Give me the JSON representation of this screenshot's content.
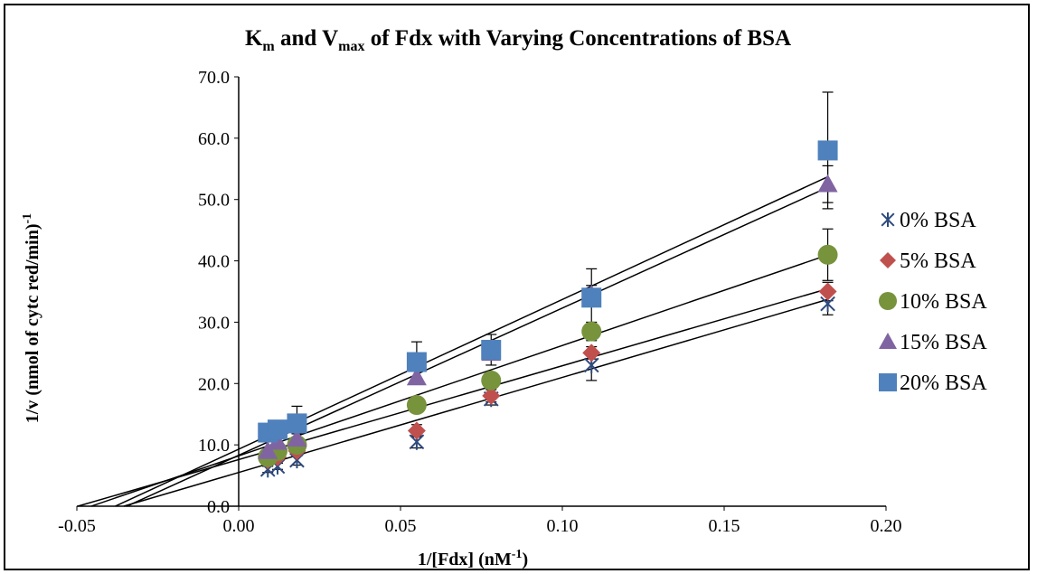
{
  "chart_data": {
    "type": "scatter",
    "title": {
      "main": "K",
      "m_sub": "m",
      "and": " and V",
      "max_sub": "max",
      "rest": " of Fdx with Varying Concentrations of BSA"
    },
    "xlabel": {
      "pre": "1/[Fdx] (nM",
      "sup": "-1",
      "post": ")"
    },
    "ylabel": {
      "main": "1/v (nmol of cytc red/min)",
      "sup": "-1"
    },
    "xlim": [
      -0.05,
      0.2
    ],
    "ylim": [
      0,
      70
    ],
    "x_ticks": [
      "-0.05",
      "0.00",
      "0.05",
      "0.10",
      "0.15",
      "0.20"
    ],
    "x_tick_values": [
      -0.05,
      0.0,
      0.05,
      0.1,
      0.15,
      0.2
    ],
    "y_ticks": [
      "0.0",
      "10.0",
      "20.0",
      "30.0",
      "40.0",
      "50.0",
      "60.0",
      "70.0"
    ],
    "y_tick_values": [
      0,
      10,
      20,
      30,
      40,
      50,
      60,
      70
    ],
    "grid": false,
    "legend_position": "right",
    "series": [
      {
        "name": "0% BSA",
        "marker": "asterisk",
        "color": "#2E4A7D",
        "x": [
          0.009,
          0.012,
          0.018,
          0.055,
          0.078,
          0.109,
          0.182
        ],
        "y": [
          6.0,
          6.5,
          7.5,
          10.5,
          17.5,
          23.0,
          33.0
        ],
        "err": [
          0.5,
          0.5,
          0.8,
          1.0,
          1.0,
          2.5,
          1.8
        ],
        "fit": {
          "slope": 155,
          "intercept": 5.5,
          "x0": -0.0355
        }
      },
      {
        "name": "5% BSA",
        "marker": "diamond",
        "color": "#C0504D",
        "x": [
          0.009,
          0.012,
          0.018,
          0.055,
          0.078,
          0.109,
          0.182
        ],
        "y": [
          7.5,
          8.0,
          9.0,
          12.3,
          18.0,
          25.0,
          35.0
        ],
        "err": [
          0.5,
          0.5,
          0.8,
          1.0,
          1.0,
          1.0,
          1.5
        ],
        "fit": {
          "slope": 153,
          "intercept": 7.6,
          "x0": -0.0497
        }
      },
      {
        "name": "10% BSA",
        "marker": "circle",
        "color": "#77933C",
        "x": [
          0.009,
          0.012,
          0.018,
          0.055,
          0.078,
          0.109,
          0.182
        ],
        "y": [
          8.0,
          9.0,
          10.0,
          16.5,
          20.5,
          28.5,
          41.0
        ],
        "err": [
          0.5,
          0.5,
          0.8,
          1.0,
          1.0,
          1.5,
          4.2
        ],
        "fit": {
          "slope": 180,
          "intercept": 8.2,
          "x0": -0.0456
        }
      },
      {
        "name": "15% BSA",
        "marker": "triangle",
        "color": "#8064A2",
        "x": [
          0.009,
          0.012,
          0.018,
          0.055,
          0.078,
          0.109,
          0.182
        ],
        "y": [
          9.0,
          10.5,
          11.0,
          21.0,
          25.0,
          34.5,
          52.5
        ],
        "err": [
          0.5,
          0.5,
          0.8,
          1.0,
          1.0,
          1.5,
          3.0
        ],
        "fit": {
          "slope": 240,
          "intercept": 8.3,
          "x0": -0.0346
        }
      },
      {
        "name": "20% BSA",
        "marker": "square",
        "color": "#4F81BD",
        "x": [
          0.009,
          0.012,
          0.018,
          0.055,
          0.078,
          0.109,
          0.182
        ],
        "y": [
          12.0,
          12.5,
          13.5,
          23.5,
          25.5,
          34.0,
          58.0
        ],
        "err": [
          1.0,
          1.0,
          2.8,
          3.3,
          2.5,
          4.7,
          9.5
        ],
        "fit": {
          "slope": 244,
          "intercept": 9.3,
          "x0": -0.0381
        }
      }
    ]
  }
}
